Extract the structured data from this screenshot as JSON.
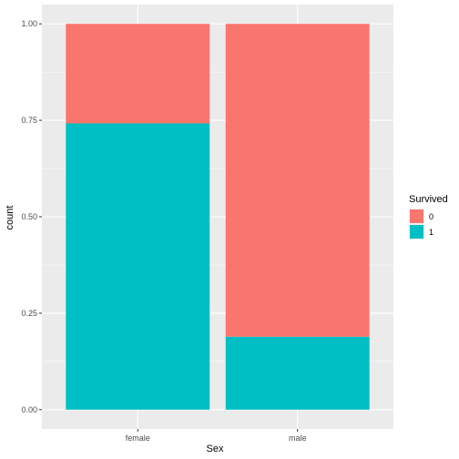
{
  "chart_data": {
    "type": "bar",
    "stacked": true,
    "position": "fill",
    "title": "",
    "xlabel": "Sex",
    "ylabel": "count",
    "categories": [
      "female",
      "male"
    ],
    "series": [
      {
        "name": "0",
        "values": [
          0.258,
          0.811
        ],
        "color": "#F8766D"
      },
      {
        "name": "1",
        "values": [
          0.742,
          0.189
        ],
        "color": "#00BFC4"
      }
    ],
    "ylim": [
      0,
      1
    ],
    "yticks": [
      0.0,
      0.25,
      0.5,
      0.75,
      1.0
    ],
    "ytick_labels": [
      "0.00",
      "0.25",
      "0.50",
      "0.75",
      "1.00"
    ],
    "grid": true,
    "legend": {
      "title": "Survived",
      "placement": "right",
      "entries": [
        "0",
        "1"
      ]
    },
    "colors": {
      "panel_background": "#EBEBEB",
      "grid_major": "#FFFFFF"
    }
  }
}
